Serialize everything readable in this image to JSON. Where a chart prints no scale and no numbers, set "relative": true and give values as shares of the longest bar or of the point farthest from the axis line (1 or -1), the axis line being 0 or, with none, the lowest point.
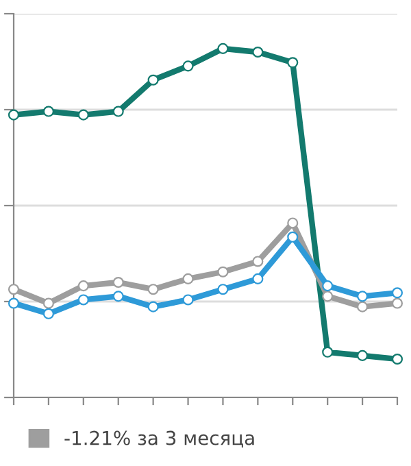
{
  "chart_data": {
    "type": "line",
    "relative": true,
    "grid": "y",
    "marker": "circle",
    "line_style": "solid",
    "legend": "bottom left",
    "categories": [
      null,
      null,
      null,
      null,
      null,
      null,
      null,
      null,
      null,
      null,
      null,
      null
    ],
    "series": [
      {
        "color": "#137a6e",
        "values": [
          0.81,
          0.82,
          0.81,
          0.82,
          0.91,
          0.95,
          1,
          0.99,
          0.96,
          0.13,
          0.12,
          0.11
        ]
      },
      {
        "name": "-1.21% за 3 месяца",
        "color": "#9e9e9e",
        "values": [
          0.31,
          0.27,
          0.32,
          0.33,
          0.31,
          0.34,
          0.36,
          0.39,
          0.5,
          0.29,
          0.26,
          0.27
        ]
      },
      {
        "color": "#2e9ad8",
        "values": [
          0.27,
          0.24,
          0.28,
          0.29,
          0.26,
          0.28,
          0.31,
          0.34,
          0.46,
          0.32,
          0.29,
          0.3
        ]
      }
    ]
  }
}
